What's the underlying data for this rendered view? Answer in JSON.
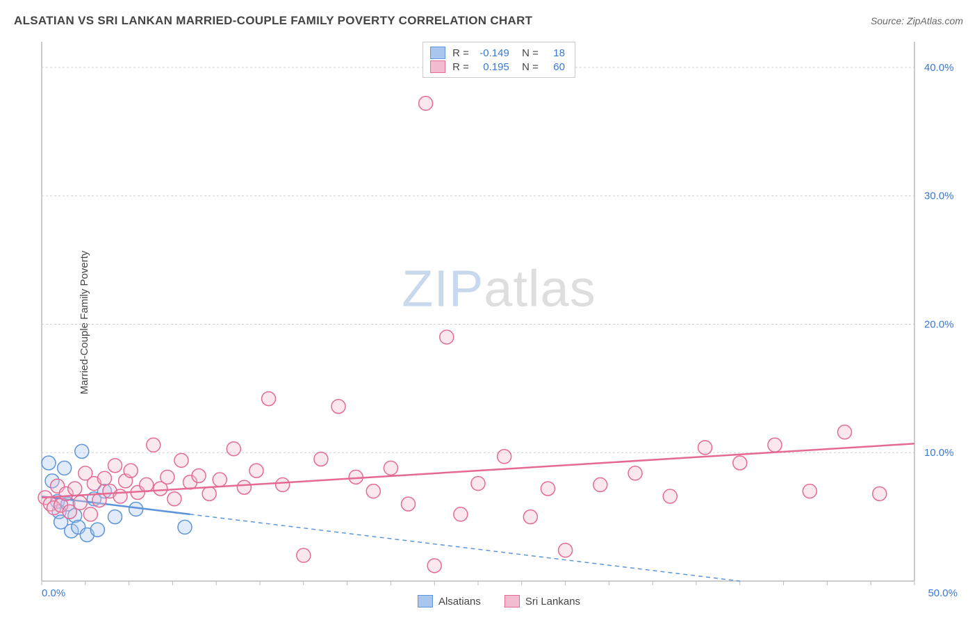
{
  "header": {
    "title": "ALSATIAN VS SRI LANKAN MARRIED-COUPLE FAMILY POVERTY CORRELATION CHART",
    "source_prefix": "Source: ",
    "source_name": "ZipAtlas.com"
  },
  "chart": {
    "type": "scatter",
    "ylabel": "Married-Couple Family Poverty",
    "xlim": [
      0,
      50
    ],
    "ylim": [
      0,
      42
    ],
    "y_ticks": [
      10,
      20,
      30,
      40
    ],
    "y_tick_labels": [
      "10.0%",
      "20.0%",
      "30.0%",
      "40.0%"
    ],
    "x_tick_left": "0.0%",
    "x_tick_right": "50.0%",
    "x_minor_step": 2.5,
    "background_color": "#ffffff",
    "grid_color": "#d0d0d0",
    "axis_color": "#bbbbbb",
    "tick_label_color": "#3978d6",
    "tick_label_fontsize": 15,
    "label_color": "#444444",
    "label_fontsize": 15,
    "point_radius": 10,
    "point_fill_opacity": 0.35,
    "point_stroke_width": 1.5,
    "series": [
      {
        "name": "Alsatians",
        "color_stroke": "#5e95da",
        "color_fill": "#a9c7ee",
        "R": "-0.149",
        "N": "18",
        "trend": {
          "x1": 0,
          "y1": 6.6,
          "x2": 8.5,
          "y2": 5.2,
          "solid_until_x": 8.5
        },
        "trend_ext": {
          "x1": 8.5,
          "y1": 5.2,
          "x2": 40,
          "y2": 0.0
        },
        "points": [
          [
            0.4,
            9.2
          ],
          [
            0.6,
            7.8
          ],
          [
            0.9,
            6.2
          ],
          [
            1.0,
            5.4
          ],
          [
            1.1,
            4.6
          ],
          [
            1.3,
            8.8
          ],
          [
            1.5,
            6.0
          ],
          [
            1.7,
            3.9
          ],
          [
            1.9,
            5.1
          ],
          [
            2.1,
            4.2
          ],
          [
            2.3,
            10.1
          ],
          [
            2.6,
            3.6
          ],
          [
            3.0,
            6.4
          ],
          [
            3.2,
            4.0
          ],
          [
            3.6,
            7.0
          ],
          [
            4.2,
            5.0
          ],
          [
            5.4,
            5.6
          ],
          [
            8.2,
            4.2
          ]
        ]
      },
      {
        "name": "Sri Lankans",
        "color_stroke": "#e46a93",
        "color_fill": "#f4bcd0",
        "R": "0.195",
        "N": "60",
        "trend": {
          "x1": 0,
          "y1": 6.5,
          "x2": 50,
          "y2": 10.7,
          "solid_until_x": 50
        },
        "points": [
          [
            0.2,
            6.5
          ],
          [
            0.5,
            6.0
          ],
          [
            0.7,
            5.7
          ],
          [
            0.9,
            7.4
          ],
          [
            1.1,
            5.9
          ],
          [
            1.4,
            6.8
          ],
          [
            1.6,
            5.4
          ],
          [
            1.9,
            7.2
          ],
          [
            2.2,
            6.1
          ],
          [
            2.5,
            8.4
          ],
          [
            2.8,
            5.2
          ],
          [
            3.0,
            7.6
          ],
          [
            3.3,
            6.3
          ],
          [
            3.6,
            8.0
          ],
          [
            3.9,
            7.0
          ],
          [
            4.2,
            9.0
          ],
          [
            4.5,
            6.6
          ],
          [
            4.8,
            7.8
          ],
          [
            5.1,
            8.6
          ],
          [
            5.5,
            6.9
          ],
          [
            6.0,
            7.5
          ],
          [
            6.4,
            10.6
          ],
          [
            6.8,
            7.2
          ],
          [
            7.2,
            8.1
          ],
          [
            7.6,
            6.4
          ],
          [
            8.0,
            9.4
          ],
          [
            8.5,
            7.7
          ],
          [
            9.0,
            8.2
          ],
          [
            9.6,
            6.8
          ],
          [
            10.2,
            7.9
          ],
          [
            11.0,
            10.3
          ],
          [
            11.6,
            7.3
          ],
          [
            12.3,
            8.6
          ],
          [
            13.0,
            14.2
          ],
          [
            13.8,
            7.5
          ],
          [
            15.0,
            2.0
          ],
          [
            16.0,
            9.5
          ],
          [
            17.0,
            13.6
          ],
          [
            18.0,
            8.1
          ],
          [
            19.0,
            7.0
          ],
          [
            20.0,
            8.8
          ],
          [
            21.0,
            6.0
          ],
          [
            22.0,
            37.2
          ],
          [
            22.5,
            1.2
          ],
          [
            23.2,
            19.0
          ],
          [
            24.0,
            5.2
          ],
          [
            25.0,
            7.6
          ],
          [
            26.5,
            9.7
          ],
          [
            28.0,
            5.0
          ],
          [
            29.0,
            7.2
          ],
          [
            30.0,
            2.4
          ],
          [
            32.0,
            7.5
          ],
          [
            34.0,
            8.4
          ],
          [
            36.0,
            6.6
          ],
          [
            38.0,
            10.4
          ],
          [
            40.0,
            9.2
          ],
          [
            42.0,
            10.6
          ],
          [
            44.0,
            7.0
          ],
          [
            46.0,
            11.6
          ],
          [
            48.0,
            6.8
          ]
        ]
      }
    ],
    "legend_bottom": [
      {
        "label": "Alsatians",
        "stroke": "#5e95da",
        "fill": "#a9c7ee"
      },
      {
        "label": "Sri Lankans",
        "stroke": "#e46a93",
        "fill": "#f4bcd0"
      }
    ],
    "watermark": {
      "zip": "ZIP",
      "atlas": "atlas"
    }
  }
}
